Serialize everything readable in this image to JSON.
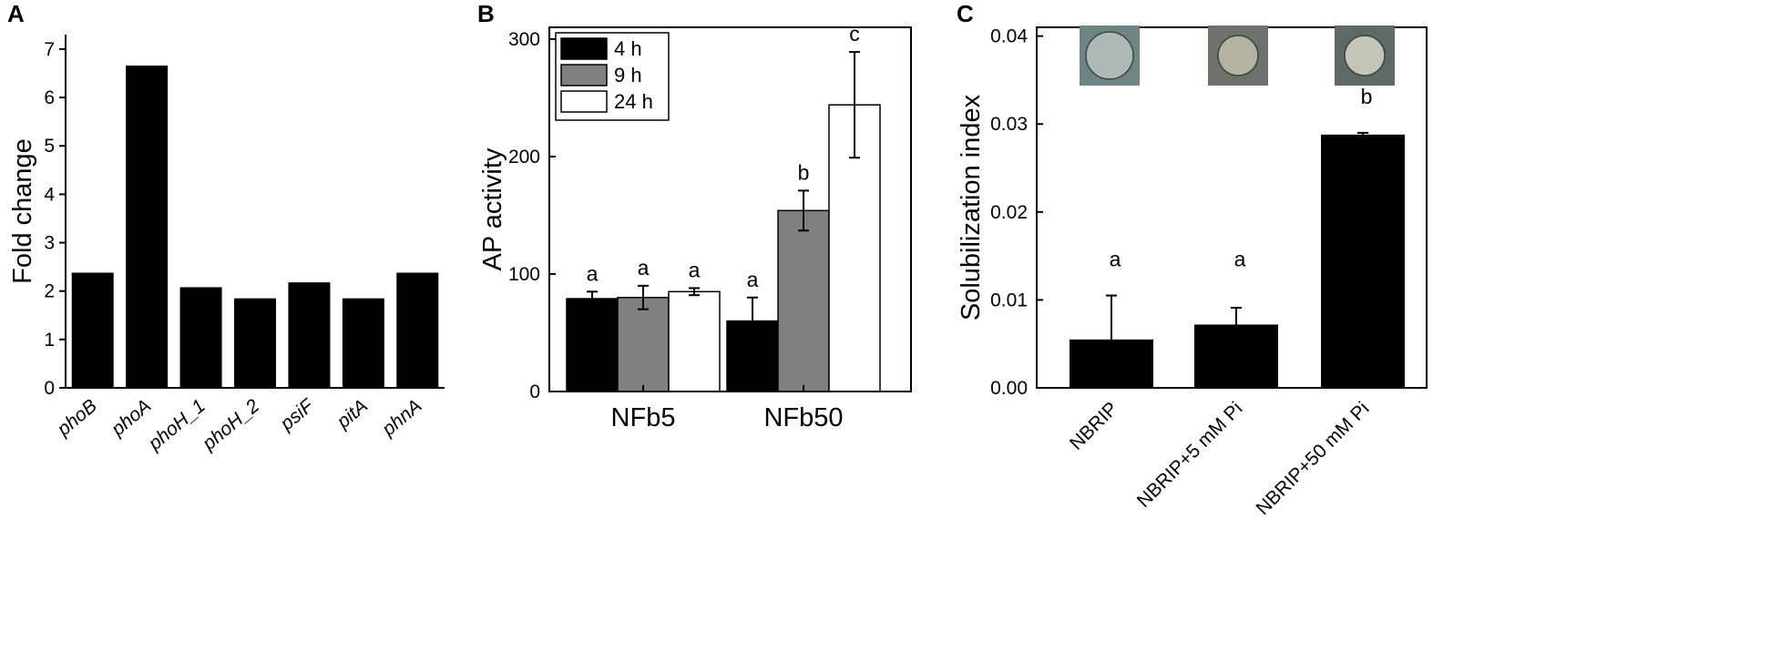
{
  "panels": {
    "a": {
      "letter": "A"
    },
    "b": {
      "letter": "B"
    },
    "c": {
      "letter": "C"
    }
  },
  "colors": {
    "bar_black": "#000000",
    "bar_gray": "#808080",
    "bar_white": "#ffffff",
    "axis": "#000000"
  },
  "chart_data": [
    {
      "type": "bar",
      "panel": "A",
      "categories": [
        "phoB",
        "phoA",
        "phoH_1",
        "phoH_2",
        "psiF",
        "pitA",
        "phnA"
      ],
      "values": [
        2.38,
        6.66,
        2.08,
        1.85,
        2.18,
        1.85,
        2.38
      ],
      "title": "",
      "xlabel": "",
      "ylabel": "Fold change",
      "ylim": [
        0,
        7.3
      ],
      "yticks": [
        0,
        1,
        2,
        3,
        4,
        5,
        6,
        7
      ],
      "category_style": "italic",
      "grid": false
    },
    {
      "type": "bar",
      "panel": "B",
      "categories": [
        "NFb5",
        "NFb50"
      ],
      "series": [
        {
          "name": "4 h",
          "color": "#000000",
          "values": [
            79,
            60
          ],
          "errors": [
            6,
            20
          ],
          "letters": [
            "a",
            "a"
          ]
        },
        {
          "name": "9 h",
          "color": "#808080",
          "values": [
            80,
            154
          ],
          "errors": [
            10,
            17
          ],
          "letters": [
            "a",
            "b"
          ]
        },
        {
          "name": "24 h",
          "color": "#ffffff",
          "values": [
            85,
            244
          ],
          "errors": [
            3,
            45
          ],
          "letters": [
            "a",
            "c"
          ]
        }
      ],
      "title": "",
      "xlabel": "",
      "ylabel": "AP activity",
      "ylim": [
        0,
        310
      ],
      "yticks": [
        0,
        100,
        200,
        300
      ],
      "legend_position": "top-left",
      "grid": false
    },
    {
      "type": "bar",
      "panel": "C",
      "categories": [
        "NBRIP",
        "NBRIP+5 mM Pi",
        "NBRIP+50 mM Pi"
      ],
      "values": [
        0.0055,
        0.0072,
        0.0288
      ],
      "errors": [
        0.005,
        0.0019,
        0.0002
      ],
      "letters": [
        "a",
        "a",
        "b"
      ],
      "title": "",
      "xlabel": "",
      "ylabel": "Solubilization index",
      "ylim": [
        0,
        0.041
      ],
      "yticks": [
        "0.00",
        "0.01",
        "0.02",
        "0.03",
        "0.04"
      ],
      "ytick_values": [
        0,
        0.01,
        0.02,
        0.03,
        0.04
      ],
      "images_above_bars": 3,
      "grid": false
    }
  ]
}
